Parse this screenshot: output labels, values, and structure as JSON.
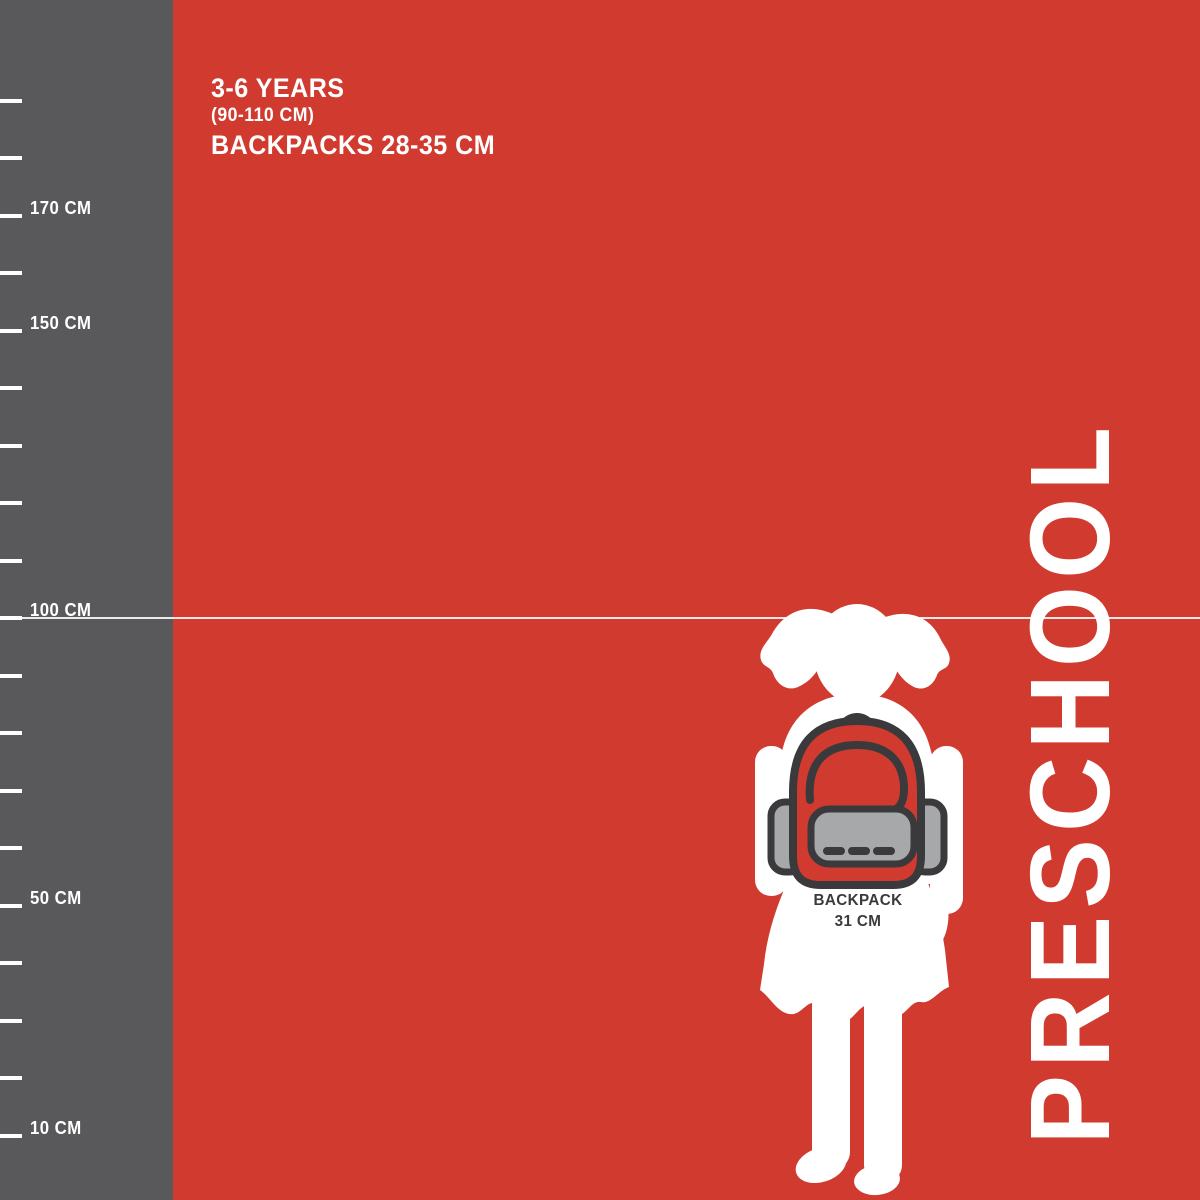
{
  "palette": {
    "background_red": "#d13a2f",
    "ruler_gray": "#59595b",
    "outline_dark": "#3a3a3c",
    "pocket_gray": "#a7a8aa",
    "white": "#ffffff"
  },
  "header": {
    "age_range": "3-6 YEARS",
    "height_range": "(90-110 CM)",
    "backpack_size_range": "BACKPACKS 28-35 CM"
  },
  "ruler": {
    "unit": "CM",
    "ticks": [
      {
        "cm": 190,
        "label": ""
      },
      {
        "cm": 180,
        "label": ""
      },
      {
        "cm": 170,
        "label": "170 CM"
      },
      {
        "cm": 160,
        "label": ""
      },
      {
        "cm": 150,
        "label": "150 CM"
      },
      {
        "cm": 140,
        "label": ""
      },
      {
        "cm": 130,
        "label": ""
      },
      {
        "cm": 120,
        "label": ""
      },
      {
        "cm": 110,
        "label": ""
      },
      {
        "cm": 100,
        "label": "100 CM"
      },
      {
        "cm": 90,
        "label": ""
      },
      {
        "cm": 80,
        "label": ""
      },
      {
        "cm": 70,
        "label": ""
      },
      {
        "cm": 60,
        "label": ""
      },
      {
        "cm": 50,
        "label": "50 CM"
      },
      {
        "cm": 40,
        "label": ""
      },
      {
        "cm": 30,
        "label": ""
      },
      {
        "cm": 20,
        "label": ""
      },
      {
        "cm": 10,
        "label": "10 CM"
      }
    ]
  },
  "reference_line": {
    "value_cm": 100
  },
  "figure": {
    "subject": "preschool girl silhouette with backpack",
    "backpack_label_line1": "BACKPACK",
    "backpack_label_line2": "31 CM"
  },
  "category_label": "PRESCHOOL"
}
